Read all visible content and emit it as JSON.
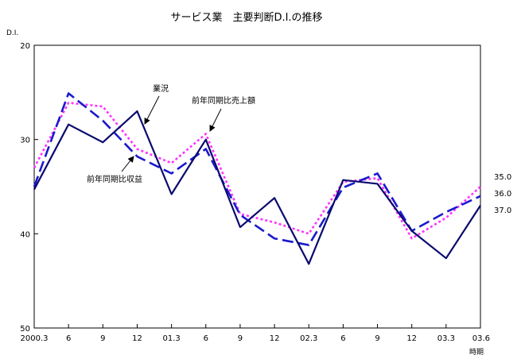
{
  "chart_data": {
    "type": "line",
    "title": "サービス業　主要判断D.I.の推移",
    "ylabel": "D.I.",
    "xlabel": "時期",
    "ylim": [
      20,
      50
    ],
    "y_inverted": true,
    "yticks": [
      20,
      30,
      40,
      50
    ],
    "categories": [
      "2000.3",
      "6",
      "9",
      "12",
      "01.3",
      "6",
      "9",
      "12",
      "02.3",
      "6",
      "9",
      "12",
      "03.3",
      "03.6"
    ],
    "legend": "none",
    "grid": false,
    "series": [
      {
        "name": "業況",
        "color": "#0a0a6e",
        "style": "solid",
        "values": [
          35.3,
          28.4,
          30.3,
          27.0,
          35.8,
          30.0,
          39.3,
          36.2,
          43.2,
          34.3,
          34.7,
          39.7,
          42.6,
          37.0
        ]
      },
      {
        "name": "前年同期比収益",
        "color": "#1a1acc",
        "style": "dashed",
        "values": [
          35.0,
          25.1,
          28.0,
          31.8,
          33.6,
          31.0,
          38.0,
          40.5,
          41.2,
          35.1,
          33.6,
          39.7,
          37.7,
          36.0
        ]
      },
      {
        "name": "前年同期比売上額",
        "color": "#ff33ff",
        "style": "dotted",
        "values": [
          33.0,
          26.1,
          26.5,
          31.0,
          32.5,
          29.4,
          37.9,
          38.8,
          40.0,
          34.5,
          34.1,
          40.5,
          38.3,
          35.0
        ]
      }
    ],
    "end_labels": [
      "35.0",
      "36.0",
      "37.0"
    ],
    "annotations": [
      "業況",
      "前年同期比売上額",
      "前年同期比収益"
    ]
  }
}
